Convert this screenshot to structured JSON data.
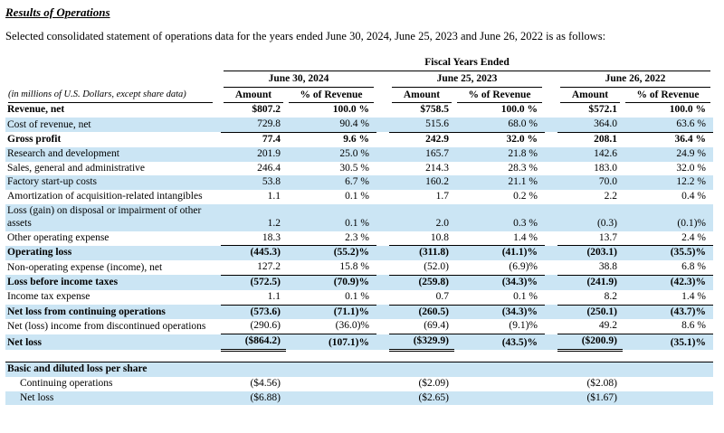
{
  "colors": {
    "row_shade": "#cbe5f4"
  },
  "document": {
    "title": "Results of Operations",
    "intro": "Selected consolidated statement of operations data for the years ended June 30, 2024, June 25, 2023 and June 26, 2022 is as follows:"
  },
  "table": {
    "fiscal_header": "Fiscal Years Ended",
    "stub_note": "(in millions of U.S. Dollars, except share data)",
    "periods": [
      "June 30, 2024",
      "June 25, 2023",
      "June 26, 2022"
    ],
    "subheaders": {
      "amount": "Amount",
      "pct": "% of Revenue"
    },
    "rows": [
      {
        "label": "Revenue, net",
        "bold": true,
        "values": [
          "$807.2",
          "100.0 %",
          "$758.5",
          "100.0 %",
          "$572.1",
          "100.0 %"
        ]
      },
      {
        "label": "Cost of revenue, net",
        "shaded": true,
        "values": [
          "729.8",
          "90.4 %",
          "515.6",
          "68.0 %",
          "364.0",
          "63.6 %"
        ]
      },
      {
        "label": "Gross profit",
        "bold": true,
        "line_above": true,
        "values": [
          "77.4",
          "9.6 %",
          "242.9",
          "32.0 %",
          "208.1",
          "36.4 %"
        ]
      },
      {
        "label": "Research and development",
        "shaded": true,
        "values": [
          "201.9",
          "25.0 %",
          "165.7",
          "21.8 %",
          "142.6",
          "24.9 %"
        ]
      },
      {
        "label": "Sales, general and administrative",
        "values": [
          "246.4",
          "30.5 %",
          "214.3",
          "28.3 %",
          "183.0",
          "32.0 %"
        ]
      },
      {
        "label": "Factory start-up costs",
        "shaded": true,
        "values": [
          "53.8",
          "6.7 %",
          "160.2",
          "21.1 %",
          "70.0",
          "12.2 %"
        ]
      },
      {
        "label": "Amortization of acquisition-related intangibles",
        "values": [
          "1.1",
          "0.1 %",
          "1.7",
          "0.2 %",
          "2.2",
          "0.4 %"
        ]
      },
      {
        "label": "Loss (gain) on disposal or impairment of other assets",
        "shaded": true,
        "values": [
          "1.2",
          "0.1 %",
          "2.0",
          "0.3 %",
          "(0.3)",
          "(0.1)%"
        ]
      },
      {
        "label": "Other operating expense",
        "values": [
          "18.3",
          "2.3 %",
          "10.8",
          "1.4 %",
          "13.7",
          "2.4 %"
        ]
      },
      {
        "label": "Operating loss",
        "bold": true,
        "shaded": true,
        "line_above": true,
        "values": [
          "(445.3)",
          "(55.2)%",
          "(311.8)",
          "(41.1)%",
          "(203.1)",
          "(35.5)%"
        ]
      },
      {
        "label": "Non-operating expense (income), net",
        "values": [
          "127.2",
          "15.8 %",
          "(52.0)",
          "(6.9)%",
          "38.8",
          "6.8 %"
        ]
      },
      {
        "label": "Loss before income taxes",
        "bold": true,
        "shaded": true,
        "line_above": true,
        "values": [
          "(572.5)",
          "(70.9)%",
          "(259.8)",
          "(34.3)%",
          "(241.9)",
          "(42.3)%"
        ]
      },
      {
        "label": "Income tax expense",
        "values": [
          "1.1",
          "0.1 %",
          "0.7",
          "0.1 %",
          "8.2",
          "1.4 %"
        ]
      },
      {
        "label": "Net loss from continuing operations",
        "bold": true,
        "shaded": true,
        "line_above": true,
        "values": [
          "(573.6)",
          "(71.1)%",
          "(260.5)",
          "(34.3)%",
          "(250.1)",
          "(43.7)%"
        ]
      },
      {
        "label": "Net (loss) income from discontinued operations",
        "values": [
          "(290.6)",
          "(36.0)%",
          "(69.4)",
          "(9.1)%",
          "49.2",
          "8.6 %"
        ]
      },
      {
        "label": "Net loss",
        "bold": true,
        "shaded": true,
        "line_above": true,
        "double_under": true,
        "values": [
          "($864.2)",
          "(107.1)%",
          "($329.9)",
          "(43.5)%",
          "($200.9)",
          "(35.1)%"
        ]
      },
      {
        "spacer": true
      },
      {
        "label": "Basic and diluted loss per share",
        "bold": true,
        "shaded": true,
        "top_rule": true,
        "values": [
          "",
          "",
          "",
          "",
          "",
          ""
        ]
      },
      {
        "label": "Continuing operations",
        "indent": true,
        "values": [
          "($4.56)",
          "",
          "($2.09)",
          "",
          "($2.08)",
          ""
        ]
      },
      {
        "label": "Net loss",
        "indent": true,
        "shaded": true,
        "values": [
          "($6.88)",
          "",
          "($2.65)",
          "",
          "($1.67)",
          ""
        ]
      }
    ]
  }
}
